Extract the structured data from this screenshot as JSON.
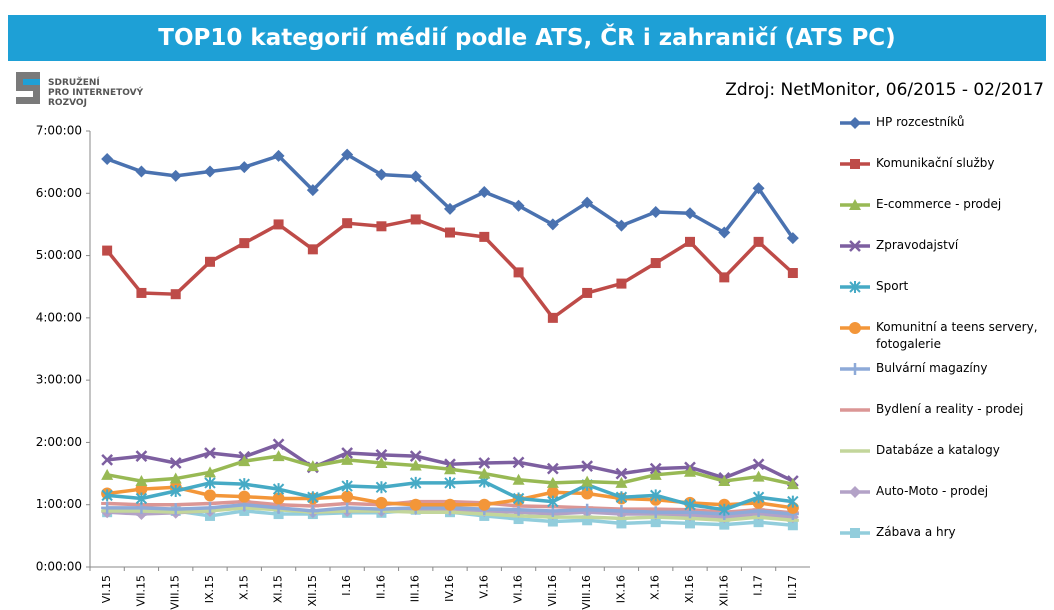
{
  "header": {
    "title": "TOP10 kategorií médií podle ATS, ČR i zahraničí (ATS PC)"
  },
  "logo": {
    "lines": [
      "SDRUŽENÍ",
      "PRO INTERNETOVÝ",
      "ROZVOJ"
    ]
  },
  "source": "Zdroj: NetMonitor, 06/2015 - 02/2017",
  "chart_data": {
    "type": "line",
    "categories": [
      "VI.15",
      "VII.15",
      "VIII.15",
      "IX.15",
      "X.15",
      "XI.15",
      "XII.15",
      "I.16",
      "II.16",
      "III.16",
      "IV.16",
      "V.16",
      "VI.16",
      "VII.16",
      "VIII.16",
      "IX.16",
      "X.16",
      "XI.16",
      "XII.16",
      "I.17",
      "II.17"
    ],
    "ylim": [
      0,
      7
    ],
    "yticks": [
      {
        "value": 0,
        "label": "0:00:00"
      },
      {
        "value": 1,
        "label": "1:00:00"
      },
      {
        "value": 2,
        "label": "2:00:00"
      },
      {
        "value": 3,
        "label": "3:00:00"
      },
      {
        "value": 4,
        "label": "4:00:00"
      },
      {
        "value": 5,
        "label": "5:00:00"
      },
      {
        "value": 6,
        "label": "6:00:00"
      },
      {
        "value": 7,
        "label": "7:00:00"
      }
    ],
    "legend": "right",
    "series": [
      {
        "name": "HP rozcestníků",
        "color": "#4a72b0",
        "marker": "diamond",
        "values": [
          6.55,
          6.35,
          6.28,
          6.35,
          6.42,
          6.6,
          6.05,
          6.62,
          6.3,
          6.27,
          5.75,
          6.02,
          5.8,
          5.5,
          5.85,
          5.48,
          5.7,
          5.68,
          5.37,
          6.08,
          5.28
        ]
      },
      {
        "name": "Komunikační služby",
        "color": "#be4b48",
        "marker": "square",
        "values": [
          5.08,
          4.4,
          4.38,
          4.9,
          5.2,
          5.5,
          5.1,
          5.52,
          5.47,
          5.58,
          5.37,
          5.3,
          4.73,
          4.0,
          4.4,
          4.55,
          4.88,
          5.22,
          4.65,
          5.22,
          4.72
        ]
      },
      {
        "name": "E-commerce - prodej",
        "color": "#98b954",
        "marker": "triangle",
        "values": [
          1.48,
          1.38,
          1.42,
          1.52,
          1.7,
          1.78,
          1.62,
          1.72,
          1.67,
          1.63,
          1.57,
          1.5,
          1.4,
          1.35,
          1.37,
          1.35,
          1.48,
          1.53,
          1.38,
          1.45,
          1.33
        ]
      },
      {
        "name": "Zpravodajství",
        "color": "#7d5fa0",
        "marker": "x",
        "values": [
          1.72,
          1.78,
          1.67,
          1.83,
          1.77,
          1.97,
          1.6,
          1.83,
          1.8,
          1.78,
          1.65,
          1.67,
          1.68,
          1.58,
          1.62,
          1.5,
          1.58,
          1.6,
          1.43,
          1.65,
          1.38
        ]
      },
      {
        "name": "Sport",
        "color": "#46aac5",
        "marker": "asterisk",
        "values": [
          1.15,
          1.1,
          1.22,
          1.35,
          1.33,
          1.25,
          1.12,
          1.3,
          1.28,
          1.35,
          1.35,
          1.37,
          1.1,
          1.05,
          1.32,
          1.12,
          1.15,
          1.0,
          0.92,
          1.12,
          1.05
        ]
      },
      {
        "name": "Komunitní a teens servery, fotogalerie",
        "color": "#f39639",
        "marker": "circle",
        "values": [
          1.18,
          1.25,
          1.28,
          1.15,
          1.13,
          1.1,
          1.1,
          1.13,
          1.03,
          1.0,
          1.0,
          1.0,
          1.08,
          1.2,
          1.18,
          1.1,
          1.08,
          1.03,
          1.0,
          1.03,
          0.95
        ]
      },
      {
        "name": "Bulvární magazíny",
        "color": "#8eaad8",
        "marker": "plus",
        "values": [
          0.95,
          0.95,
          0.93,
          0.95,
          1.0,
          0.95,
          0.9,
          0.95,
          0.93,
          0.95,
          0.95,
          0.93,
          0.92,
          0.9,
          0.92,
          0.9,
          0.88,
          0.88,
          0.85,
          0.9,
          0.85
        ]
      },
      {
        "name": "Bydlení a reality - prodej",
        "color": "#db9695",
        "marker": "dash",
        "values": [
          1.02,
          1.0,
          1.0,
          1.02,
          1.05,
          1.0,
          0.98,
          1.02,
          1.0,
          1.05,
          1.05,
          1.03,
          0.98,
          0.97,
          0.95,
          0.93,
          0.93,
          0.92,
          0.88,
          0.92,
          0.87
        ]
      },
      {
        "name": "Databáze a katalogy",
        "color": "#c3d69b",
        "marker": "dash",
        "values": [
          0.9,
          0.9,
          0.88,
          0.9,
          0.95,
          0.92,
          0.88,
          0.9,
          0.9,
          0.88,
          0.88,
          0.85,
          0.82,
          0.8,
          0.8,
          0.78,
          0.8,
          0.78,
          0.75,
          0.8,
          0.75
        ]
      },
      {
        "name": "Auto-Moto - prodej",
        "color": "#b3a2c7",
        "marker": "diamond",
        "values": [
          0.88,
          0.85,
          0.87,
          0.9,
          0.98,
          0.95,
          0.88,
          0.9,
          0.9,
          0.93,
          0.92,
          0.9,
          0.88,
          0.85,
          0.88,
          0.85,
          0.85,
          0.83,
          0.8,
          0.85,
          0.8
        ]
      },
      {
        "name": "Zábava a hry",
        "color": "#92cddc",
        "marker": "square",
        "values": [
          0.88,
          0.9,
          0.9,
          0.82,
          0.9,
          0.85,
          0.85,
          0.87,
          0.87,
          0.92,
          0.88,
          0.82,
          0.77,
          0.73,
          0.75,
          0.7,
          0.72,
          0.7,
          0.68,
          0.72,
          0.67
        ]
      }
    ]
  }
}
